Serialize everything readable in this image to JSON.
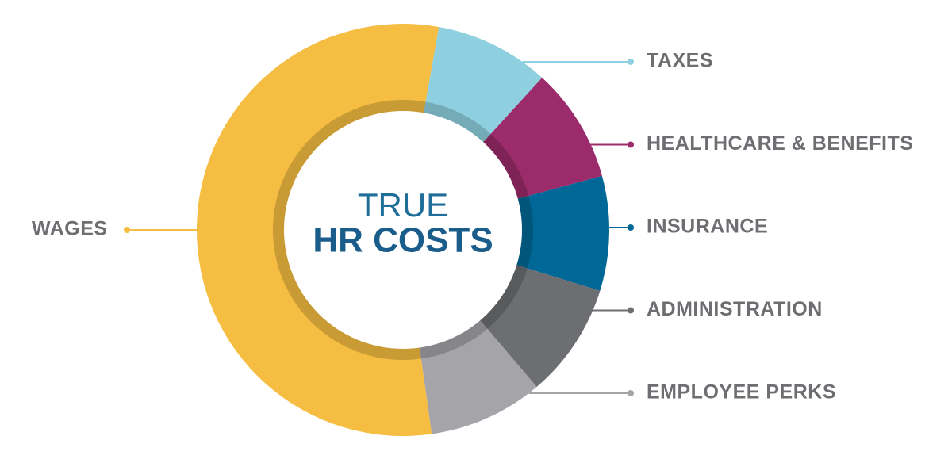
{
  "chart_data": {
    "type": "donut",
    "center_text": [
      "TRUE",
      "HR COSTS"
    ],
    "categories": [
      "TAXES",
      "HEALTHCARE & BENEFITS",
      "INSURANCE",
      "ADMINISTRATION",
      "EMPLOYEE PERKS",
      "WAGES"
    ],
    "values": [
      9,
      9,
      9,
      9,
      9,
      55
    ],
    "colors": [
      "#8fd0e0",
      "#9c2b6b",
      "#006896",
      "#6d6e71",
      "#a4a4a9",
      "#f5bd41"
    ]
  }
}
